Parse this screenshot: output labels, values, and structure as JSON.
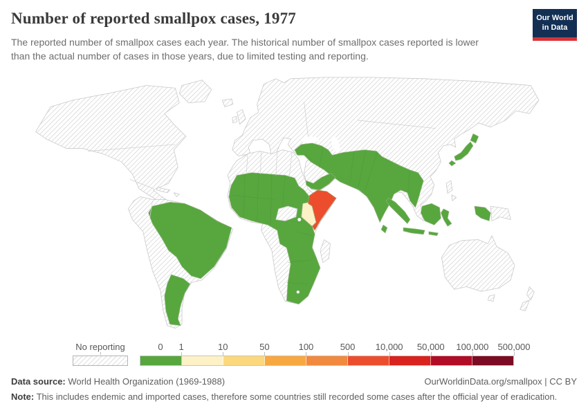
{
  "header": {
    "title": "Number of reported smallpox cases, 1977",
    "subtitle": "The reported number of smallpox cases each year. The historical number of smallpox cases reported is lower than the actual number of cases in those years, due to limited testing and reporting.",
    "logo": {
      "line1": "Our World",
      "line2": "in Data",
      "bg_color": "#132f54",
      "bar_color": "#d6333a"
    }
  },
  "chart_data": {
    "type": "heatmap",
    "subtype": "world-choropleth",
    "title": "Number of reported smallpox cases, 1977",
    "year": "1977",
    "no_data_label": "No reporting",
    "tick_labels": [
      "0",
      "1",
      "10",
      "50",
      "100",
      "500",
      "10,000",
      "50,000",
      "100,000",
      "500,000"
    ],
    "bins": [
      {
        "range": "0",
        "color": "#57a73e"
      },
      {
        "range": "1–10",
        "color": "#fdf1c6"
      },
      {
        "range": "10–50",
        "color": "#fcd87d"
      },
      {
        "range": "50–100",
        "color": "#f8a840"
      },
      {
        "range": "100–500",
        "color": "#f18a3e"
      },
      {
        "range": "500–10,000",
        "color": "#ec4e2d"
      },
      {
        "range": "10,000–50,000",
        "color": "#d8231f"
      },
      {
        "range": "50,000–100,000",
        "color": "#b20d26"
      },
      {
        "range": "100,000–500,000",
        "color": "#7c0c23"
      }
    ],
    "regions": [
      {
        "id": "somalia",
        "label": "Somalia",
        "bin": "500–10,000",
        "color": "#ec4e2d"
      },
      {
        "id": "kenya",
        "label": "Kenya",
        "bin": "1–10",
        "color": "#fdf1c6"
      },
      {
        "id": "brazil",
        "label": "Brazil",
        "bin": "0",
        "color": "#57a73e"
      },
      {
        "id": "argentina",
        "label": "Argentina",
        "bin": "0",
        "color": "#57a73e"
      },
      {
        "id": "africa-main",
        "label": "Sahel, West, East & Southern Africa",
        "bin": "0",
        "color": "#57a73e"
      },
      {
        "id": "middle-east-band",
        "label": "Turkey–Iran–Afghanistan–Pakistan–India–Burma",
        "bin": "0",
        "color": "#57a73e"
      },
      {
        "id": "yemen-oman",
        "label": "Yemen & Oman",
        "bin": "0",
        "color": "#57a73e"
      },
      {
        "id": "sri-lanka",
        "label": "Sri Lanka",
        "bin": "0",
        "color": "#57a73e"
      },
      {
        "id": "japan",
        "label": "Japan",
        "bin": "0",
        "color": "#57a73e"
      },
      {
        "id": "indonesia",
        "label": "Indonesia",
        "bin": "0",
        "color": "#57a73e"
      },
      {
        "id": "rest-of-world",
        "label": "All hatched areas",
        "bin": "No reporting",
        "color": "hatch"
      }
    ],
    "map_style": {
      "ocean": "#ffffff",
      "hatch_line": "#d7d7d7",
      "border": "#c8c8c8"
    }
  },
  "footer": {
    "source_label": "Data source:",
    "source_text": " World Health Organization (1969-1988)",
    "credit": "OurWorldinData.org/smallpox | CC BY",
    "note_label": "Note:",
    "note_text": " This includes endemic and imported cases, therefore some countries still recorded some cases after the official year of eradication."
  }
}
